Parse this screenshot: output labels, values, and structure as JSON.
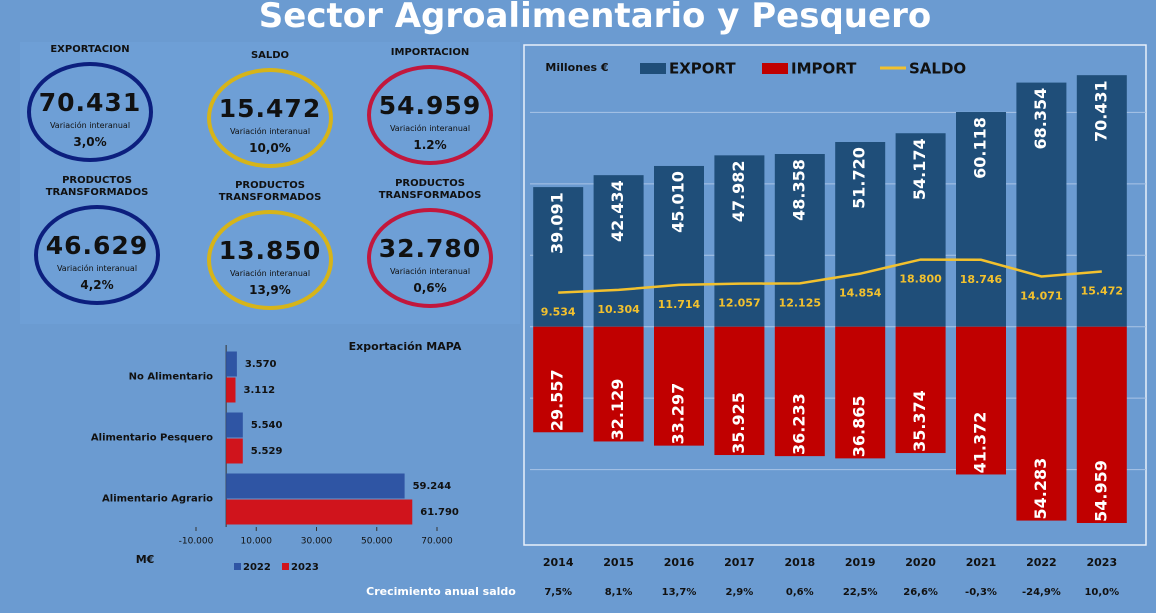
{
  "title": "Sector Agroalimentario y Pesquero",
  "kpis": [
    {
      "label": "EXPORTACION",
      "value": "70.431",
      "variation_label": "Variación interanual",
      "variation": "3,0%",
      "color": "#0c1f7e"
    },
    {
      "label": "SALDO",
      "value": "15.472",
      "variation_label": "Variación interanual",
      "variation": "10,0%",
      "color": "#d6b419"
    },
    {
      "label": "IMPORTACION",
      "value": "54.959",
      "variation_label": "Variación interanual",
      "variation": "1.2%",
      "color": "#c2173c"
    },
    {
      "label": "PRODUCTOS TRANSFORMADOS",
      "value": "46.629",
      "variation_label": "Variación interanual",
      "variation": "4,2%",
      "color": "#0c1f7e"
    },
    {
      "label": "PRODUCTOS TRANSFORMADOS",
      "value": "13.850",
      "variation_label": "Variación interanual",
      "variation": "13,9%",
      "color": "#d6b419"
    },
    {
      "label": "PRODUCTOS TRANSFORMADOS",
      "value": "32.780",
      "variation_label": "Variación interanual",
      "variation": "0,6%",
      "color": "#c2173c"
    }
  ],
  "chart_data": [
    {
      "type": "hbar",
      "title": "Exportación MAPA",
      "x_label": "M€",
      "categories": [
        "No Alimentario",
        "Alimentario Pesquero",
        "Alimentario Agrario"
      ],
      "series": [
        {
          "name": "2022",
          "color": "#2f55a4",
          "values": [
            3570,
            5540,
            59244
          ],
          "value_labels": [
            "3.570",
            "5.540",
            "59.244"
          ]
        },
        {
          "name": "2023",
          "color": "#d0141c",
          "values": [
            3112,
            5529,
            61790
          ],
          "value_labels": [
            "3.112",
            "5.529",
            "61.790"
          ]
        }
      ],
      "xlim": [
        -10000,
        70000
      ],
      "xticks": [
        {
          "value": -10000,
          "label": "-10.000"
        },
        {
          "value": 10000,
          "label": "10.000"
        },
        {
          "value": 30000,
          "label": "30.000"
        },
        {
          "value": 50000,
          "label": "50.000"
        },
        {
          "value": 70000,
          "label": "70.000"
        }
      ]
    },
    {
      "type": "bar",
      "unit_label": "Millones €",
      "categories": [
        "2014",
        "2015",
        "2016",
        "2017",
        "2018",
        "2019",
        "2020",
        "2021",
        "2022",
        "2023"
      ],
      "series": [
        {
          "name": "EXPORT",
          "color": "#1f4e79",
          "direction": "up",
          "values": [
            39091,
            42434,
            45010,
            47982,
            48358,
            51720,
            54174,
            60118,
            68354,
            70431
          ],
          "value_labels": [
            "39.091",
            "42.434",
            "45.010",
            "47.982",
            "48.358",
            "51.720",
            "54.174",
            "60.118",
            "68.354",
            "70.431"
          ]
        },
        {
          "name": "IMPORT",
          "color": "#c00000",
          "direction": "down",
          "values": [
            29557,
            32129,
            33297,
            35925,
            36233,
            36865,
            35374,
            41372,
            54283,
            54959
          ],
          "value_labels": [
            "29.557",
            "32.129",
            "33.297",
            "35.925",
            "36.233",
            "36.865",
            "35.374",
            "41.372",
            "54.283",
            "54.959"
          ]
        },
        {
          "name": "SALDO",
          "color": "#f2c12e",
          "type": "line",
          "values": [
            9534,
            10304,
            11714,
            12057,
            12125,
            14854,
            18800,
            18746,
            14071,
            15472
          ],
          "value_labels": [
            "9.534",
            "10.304",
            "11.714",
            "12.057",
            "12.125",
            "14.854",
            "18.800",
            "18.746",
            "14.071",
            "15.472"
          ]
        }
      ],
      "ylim": [
        -60000,
        80000
      ],
      "yticks": [
        -40000,
        -20000,
        0,
        20000,
        40000,
        60000
      ],
      "grid": true,
      "growth": {
        "label": "Crecimiento anual saldo",
        "values": [
          7.5,
          8.1,
          13.7,
          2.9,
          0.6,
          22.5,
          26.6,
          -0.3,
          -24.9,
          10.0
        ],
        "value_labels": [
          "7,5%",
          "8,1%",
          "13,7%",
          "2,9%",
          "0,6%",
          "22,5%",
          "26,6%",
          "-0,3%",
          "-24,9%",
          "10,0%"
        ]
      }
    }
  ]
}
